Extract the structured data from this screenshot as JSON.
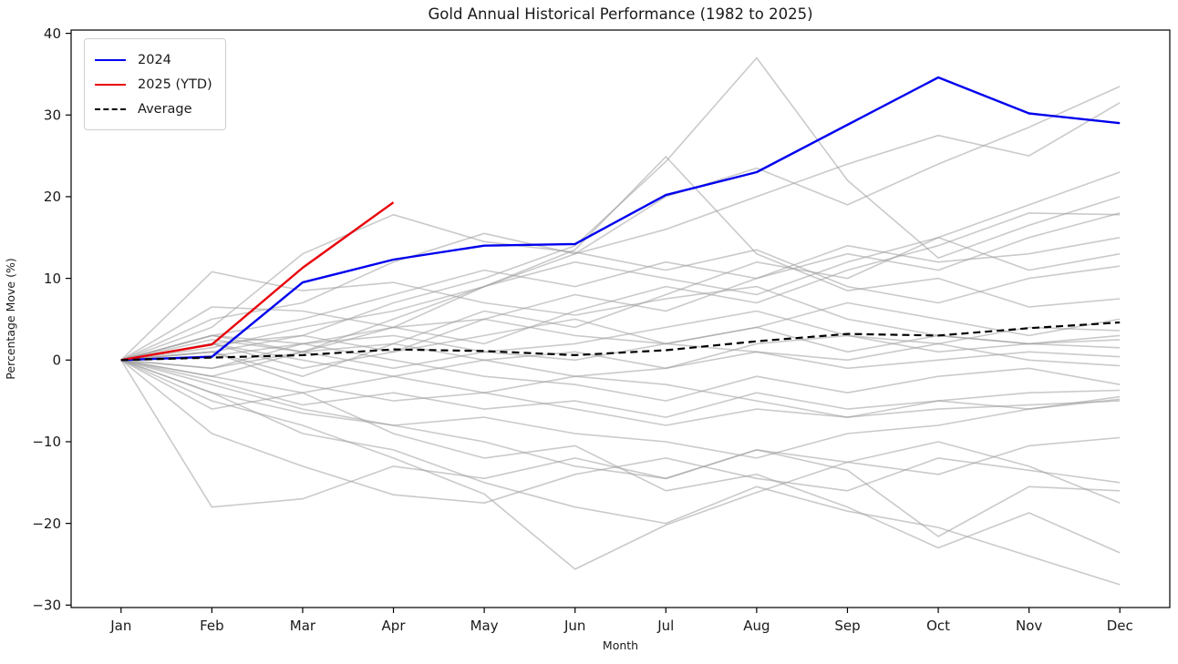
{
  "title": "Gold Annual Historical Performance (1982 to 2025)",
  "axes": {
    "xlabel": "Month",
    "ylabel": "Percentage Move (%)",
    "x_tick_labels": [
      "Jan",
      "Feb",
      "Mar",
      "Apr",
      "May",
      "Jun",
      "Jul",
      "Aug",
      "Sep",
      "Oct",
      "Nov",
      "Dec"
    ],
    "y_tick_labels": [
      "−30",
      "−20",
      "−10",
      "0",
      "10",
      "20",
      "30",
      "40"
    ],
    "y_tick_values": [
      -30,
      -20,
      -10,
      0,
      10,
      20,
      30,
      40
    ]
  },
  "legend": [
    {
      "label": "2024",
      "color": "#0000ee",
      "dash": false
    },
    {
      "label": "2025 (YTD)",
      "color": "#e8000b",
      "dash": false
    },
    {
      "label": "Average",
      "color": "#000000",
      "dash": true
    }
  ],
  "colors": {
    "history_line": "#9e9e9e",
    "line_2024": "#0000ee",
    "line_2025": "#e8000b",
    "average_line": "#000000",
    "axis": "#000000",
    "background": "#ffffff"
  },
  "chart_data": {
    "type": "line",
    "title": "Gold Annual Historical Performance (1982 to 2025)",
    "xlabel": "Month",
    "ylabel": "Percentage Move (%)",
    "categories": [
      "Jan",
      "Feb",
      "Mar",
      "Apr",
      "May",
      "Jun",
      "Jul",
      "Aug",
      "Sep",
      "Oct",
      "Nov",
      "Dec"
    ],
    "ylim": [
      -30,
      40
    ],
    "legend_position": "upper left",
    "grid": false,
    "series": [
      {
        "name": "hist-01",
        "role": "history",
        "values": [
          0,
          1,
          3,
          7,
          10,
          14,
          24.3,
          37,
          22,
          12.5,
          16.5,
          20
        ]
      },
      {
        "name": "hist-02",
        "role": "history",
        "values": [
          0,
          3,
          1,
          4,
          9,
          13.5,
          24.9,
          13,
          8.5,
          10,
          6.5,
          7.5
        ]
      },
      {
        "name": "hist-03",
        "role": "history",
        "values": [
          0,
          10.8,
          8.5,
          9.5,
          7,
          5.5,
          7.5,
          9,
          5,
          3,
          2,
          3
        ]
      },
      {
        "name": "hist-04",
        "role": "history",
        "values": [
          0,
          4,
          13,
          17.8,
          14.5,
          13.2,
          11,
          13.5,
          9,
          7,
          10,
          11.5
        ]
      },
      {
        "name": "hist-05",
        "role": "history",
        "values": [
          0,
          -2,
          1,
          5,
          9,
          13,
          20,
          23.5,
          19,
          24,
          28.5,
          33.5
        ]
      },
      {
        "name": "hist-06",
        "role": "history",
        "values": [
          0,
          5,
          7,
          12,
          15.5,
          13,
          16,
          20,
          24,
          27.5,
          25,
          31.5
        ]
      },
      {
        "name": "hist-07",
        "role": "history",
        "values": [
          0,
          -5,
          -8,
          -12,
          -16.4,
          -25.6,
          -20.2,
          -16.2,
          -12.5,
          -14,
          -10.5,
          -9.5
        ]
      },
      {
        "name": "hist-08",
        "role": "history",
        "values": [
          0,
          -18,
          -17,
          -13,
          -14.5,
          -12,
          -14.5,
          -11,
          -12.5,
          -10,
          -13,
          -17.5
        ]
      },
      {
        "name": "hist-09",
        "role": "history",
        "values": [
          0,
          -3,
          -6,
          -8,
          -10,
          -13,
          -14.5,
          -11,
          -13.5,
          -21.6,
          -15.5,
          -16
        ]
      },
      {
        "name": "hist-10",
        "role": "history",
        "values": [
          0,
          -6,
          -4,
          -9,
          -12,
          -10.5,
          -16,
          -14,
          -18,
          -23,
          -18.7,
          -23.6
        ]
      },
      {
        "name": "hist-11",
        "role": "history",
        "values": [
          0,
          -4,
          -9,
          -11,
          -15,
          -18,
          -20,
          -15.5,
          -18.5,
          -20.5,
          -24,
          -27.5
        ]
      },
      {
        "name": "hist-12",
        "role": "history",
        "values": [
          0,
          1,
          -2,
          2,
          6,
          4,
          8,
          12,
          10,
          15,
          19,
          23
        ]
      },
      {
        "name": "hist-13",
        "role": "history",
        "values": [
          0,
          2,
          3,
          1,
          5,
          8,
          6,
          10,
          13,
          11,
          15,
          18
        ]
      },
      {
        "name": "hist-14",
        "role": "history",
        "values": [
          0,
          -1,
          2,
          4,
          2,
          6,
          9,
          7,
          11,
          14,
          18,
          17.8
        ]
      },
      {
        "name": "hist-15",
        "role": "history",
        "values": [
          0,
          3,
          5,
          8,
          11,
          9,
          12,
          10,
          14,
          12,
          13,
          15
        ]
      },
      {
        "name": "hist-16",
        "role": "history",
        "values": [
          0,
          1.5,
          4,
          6,
          9,
          12,
          10,
          8,
          12,
          15,
          11,
          13
        ]
      },
      {
        "name": "hist-17",
        "role": "history",
        "values": [
          0,
          2,
          -1,
          1,
          3,
          5,
          2,
          4,
          7,
          5,
          3,
          5
        ]
      },
      {
        "name": "hist-18",
        "role": "history",
        "values": [
          0,
          0.5,
          2,
          3,
          1,
          2,
          4,
          6,
          3,
          2,
          4,
          3.6
        ]
      },
      {
        "name": "hist-19",
        "role": "history",
        "values": [
          0,
          -2,
          -4,
          -2,
          0,
          1,
          -1,
          2,
          3,
          1,
          2,
          2.5
        ]
      },
      {
        "name": "hist-20",
        "role": "history",
        "values": [
          0,
          6.5,
          6,
          4,
          5,
          3,
          2,
          4,
          1,
          3,
          2,
          1.5
        ]
      },
      {
        "name": "hist-21",
        "role": "history",
        "values": [
          0,
          2.5,
          1,
          -1,
          1,
          0,
          2,
          1,
          -1,
          0,
          1,
          0.4
        ]
      },
      {
        "name": "hist-22",
        "role": "history",
        "values": [
          0,
          -1,
          1,
          2,
          0,
          -2,
          -1,
          1,
          0,
          2,
          0,
          -0.7
        ]
      },
      {
        "name": "hist-23",
        "role": "history",
        "values": [
          0,
          3,
          2,
          0,
          -2,
          -3,
          -5,
          -2,
          -4,
          -2,
          -1,
          -3
        ]
      },
      {
        "name": "hist-24",
        "role": "history",
        "values": [
          0,
          -2.5,
          -5.5,
          -4,
          -6,
          -5,
          -7,
          -4,
          -6,
          -5,
          -4,
          -3.7
        ]
      },
      {
        "name": "hist-25",
        "role": "history",
        "values": [
          0,
          1,
          -3,
          -5,
          -4,
          -6,
          -8,
          -6,
          -7,
          -5,
          -6,
          -4.5
        ]
      },
      {
        "name": "hist-26",
        "role": "history",
        "values": [
          0,
          -4,
          -6.5,
          -8,
          -7,
          -9,
          -10,
          -12,
          -9,
          -8,
          -6,
          -4.8
        ]
      },
      {
        "name": "hist-27",
        "role": "history",
        "values": [
          0,
          2,
          0,
          -2,
          -4,
          -2,
          -3,
          -5,
          -7,
          -6,
          -5.5,
          -5
        ]
      },
      {
        "name": "hist-28",
        "role": "history",
        "values": [
          0,
          -9,
          -13,
          -16.5,
          -17.5,
          -14,
          -12,
          -14.5,
          -16,
          -12,
          -13.5,
          -15
        ]
      },
      {
        "name": "2024",
        "role": "year2024",
        "values": [
          0,
          0.4,
          9.5,
          12.3,
          14,
          14.2,
          20.2,
          23,
          28.8,
          34.6,
          30.2,
          29
        ]
      },
      {
        "name": "2025 (YTD)",
        "role": "year2025",
        "values": [
          0,
          1.9,
          11.3,
          19.3
        ]
      },
      {
        "name": "Average",
        "role": "average",
        "values": [
          0,
          0.3,
          0.6,
          1.3,
          1.1,
          0.6,
          1.2,
          2.3,
          3.2,
          3,
          3.9,
          4.6
        ]
      }
    ]
  }
}
